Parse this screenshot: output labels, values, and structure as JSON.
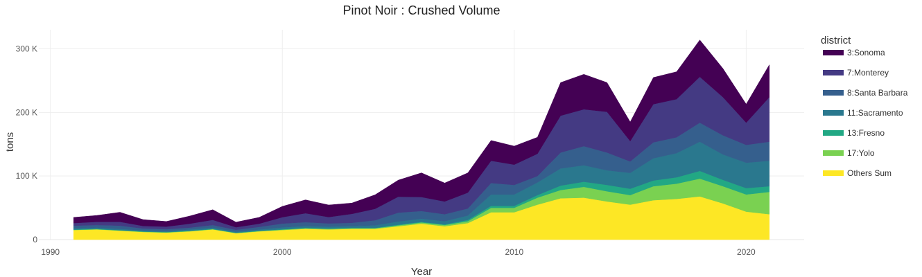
{
  "chart_data": {
    "type": "area",
    "title": "Pinot Noir : Crushed Volume",
    "xlabel": "Year",
    "ylabel": "tons",
    "xlim": [
      1989.5,
      2022.5
    ],
    "ylim": [
      0,
      330000
    ],
    "x_ticks": [
      1990,
      2000,
      2010,
      2020
    ],
    "x_tick_labels": [
      "1990",
      "2000",
      "2010",
      "2020"
    ],
    "y_ticks": [
      0,
      100000,
      200000,
      300000
    ],
    "y_tick_labels": [
      "0",
      "100 K",
      "200 K",
      "300 K"
    ],
    "grid": true,
    "stacked": true,
    "legend_title": "district",
    "legend_position": "right",
    "x": [
      1991,
      1992,
      1993,
      1994,
      1995,
      1996,
      1997,
      1998,
      1999,
      2000,
      2001,
      2002,
      2003,
      2004,
      2005,
      2006,
      2007,
      2008,
      2009,
      2010,
      2011,
      2012,
      2013,
      2014,
      2015,
      2016,
      2017,
      2018,
      2019,
      2020,
      2021
    ],
    "series": [
      {
        "name": "Others Sum",
        "color": "#fde725",
        "values": [
          15000,
          16000,
          14000,
          12000,
          11000,
          13000,
          16000,
          10000,
          13000,
          15000,
          17000,
          16000,
          17000,
          17000,
          21000,
          25000,
          21000,
          26000,
          43000,
          43000,
          55000,
          65000,
          66000,
          60000,
          55000,
          62000,
          64000,
          68000,
          57000,
          44000,
          40000
        ]
      },
      {
        "name": "17:Yolo",
        "color": "#7ad151",
        "values": [
          500,
          500,
          500,
          500,
          500,
          500,
          500,
          500,
          500,
          800,
          1000,
          1000,
          1000,
          1000,
          1500,
          2000,
          2000,
          3000,
          7000,
          7000,
          11000,
          13000,
          17000,
          16000,
          15000,
          22000,
          24000,
          28000,
          27000,
          27000,
          35000
        ]
      },
      {
        "name": "13:Fresno",
        "color": "#22a884",
        "values": [
          500,
          500,
          500,
          500,
          500,
          500,
          500,
          500,
          500,
          500,
          500,
          500,
          500,
          500,
          1000,
          1000,
          1000,
          2000,
          3000,
          3000,
          4000,
          7000,
          8000,
          10000,
          10000,
          9000,
          10000,
          12000,
          10000,
          10000,
          9000
        ]
      },
      {
        "name": "11:Sacramento",
        "color": "#2a788e",
        "values": [
          2000,
          2000,
          2000,
          1500,
          1500,
          2000,
          2000,
          1500,
          2000,
          3000,
          3000,
          3000,
          3000,
          4000,
          5000,
          5000,
          5000,
          7000,
          18000,
          18000,
          20000,
          27000,
          26000,
          23000,
          25000,
          35000,
          38000,
          46000,
          40000,
          40000,
          40000
        ]
      },
      {
        "name": "8:Santa Barbara",
        "color": "#355f8d",
        "values": [
          4000,
          4000,
          5000,
          3000,
          3000,
          3000,
          4000,
          3000,
          4000,
          6000,
          6000,
          5000,
          5000,
          8000,
          14000,
          12000,
          11000,
          11000,
          18000,
          15000,
          10000,
          25000,
          30000,
          28000,
          18000,
          25000,
          25000,
          30000,
          30000,
          28000,
          30000
        ]
      },
      {
        "name": "7:Monterey",
        "color": "#443a83",
        "values": [
          4000,
          5000,
          6000,
          4000,
          4000,
          6000,
          8000,
          4000,
          5000,
          10000,
          14000,
          10000,
          14000,
          18000,
          25000,
          22000,
          20000,
          25000,
          35000,
          32000,
          35000,
          58000,
          58000,
          64000,
          32000,
          60000,
          60000,
          72000,
          60000,
          35000,
          70000
        ]
      },
      {
        "name": "3:Sonoma",
        "color": "#440154",
        "values": [
          9000,
          10000,
          15000,
          10000,
          8000,
          12000,
          16000,
          8000,
          10000,
          17000,
          21000,
          19000,
          17000,
          22000,
          26000,
          38000,
          29000,
          31000,
          32000,
          29000,
          26000,
          52000,
          55000,
          46000,
          30000,
          42000,
          43000,
          58000,
          45000,
          29000,
          51000
        ]
      }
    ]
  }
}
